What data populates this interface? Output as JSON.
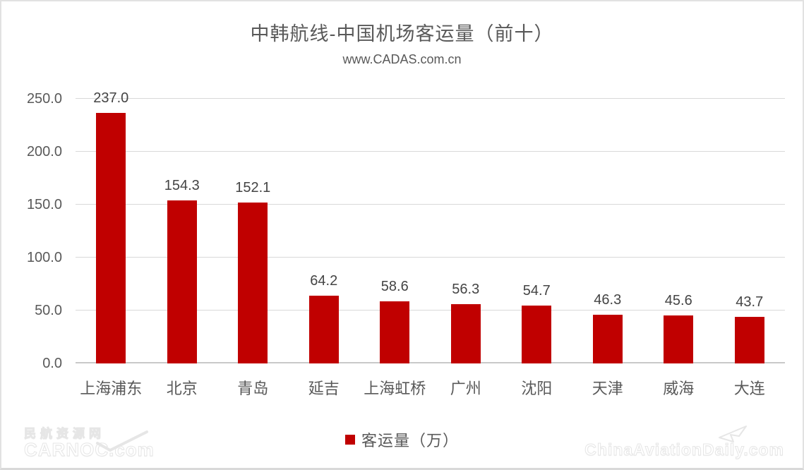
{
  "header": {
    "title": "中韩航线-中国机场客运量（前十）",
    "subtitle": "www.CADAS.com.cn"
  },
  "legend": {
    "label": "客运量（万）",
    "marker_color": "#C00000"
  },
  "watermarks": {
    "bottom_left_line1": "民航资源网",
    "bottom_left_line2": "CARNOC.com",
    "bottom_right": "ChinaAviationDaily.com"
  },
  "colors": {
    "bar": "#C00000",
    "gridline": "#D9D9D9",
    "axis_text": "#595959",
    "value_text": "#444444"
  },
  "chart_data": {
    "type": "bar",
    "title": "中韩航线-中国机场客运量（前十）",
    "subtitle": "www.CADAS.com.cn",
    "categories": [
      "上海浦东",
      "北京",
      "青岛",
      "延吉",
      "上海虹桥",
      "广州",
      "沈阳",
      "天津",
      "威海",
      "大连"
    ],
    "values": [
      237.0,
      154.3,
      152.1,
      64.2,
      58.6,
      56.3,
      54.7,
      46.3,
      45.6,
      43.7
    ],
    "value_labels": [
      "237.0",
      "154.3",
      "152.1",
      "64.2",
      "58.6",
      "56.3",
      "54.7",
      "46.3",
      "45.6",
      "43.7"
    ],
    "series_name": "客运量（万）",
    "xlabel": "",
    "ylabel": "",
    "ylim": [
      0,
      250
    ],
    "yticks": [
      0,
      50,
      100,
      150,
      200,
      250
    ],
    "ytick_labels": [
      "0.0",
      "50.0",
      "100.0",
      "150.0",
      "200.0",
      "250.0"
    ],
    "grid": true,
    "legend_position": "bottom"
  }
}
